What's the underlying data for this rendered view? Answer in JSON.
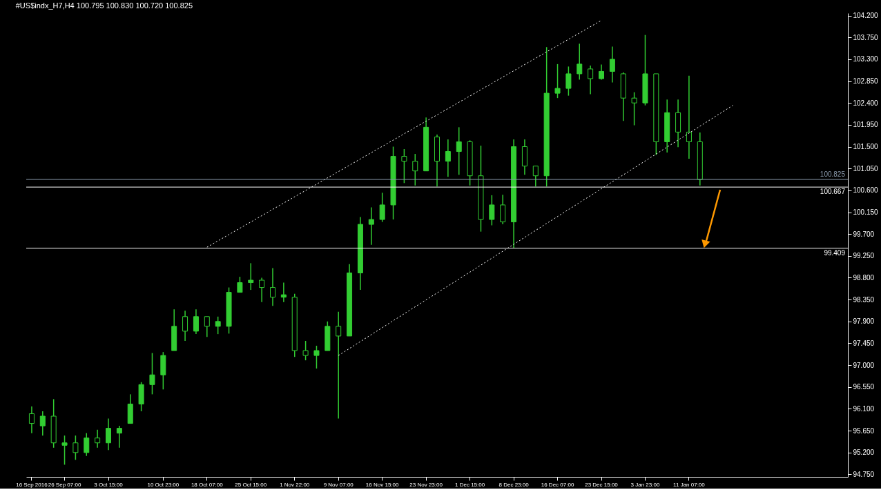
{
  "chart_data": {
    "type": "candlestick",
    "title": "#US$indx_H7,H4  100.795 100.830 100.720 100.825",
    "color": "#32cd32",
    "categories": [
      "16 Sep 2016",
      null,
      null,
      "26 Sep 07:00",
      null,
      null,
      null,
      "3 Oct 15:00",
      null,
      null,
      null,
      null,
      "10 Oct 23:00",
      null,
      null,
      null,
      "18 Oct 07:00",
      null,
      null,
      null,
      "25 Oct 15:00",
      null,
      null,
      null,
      "1 Nov 22:00",
      null,
      null,
      null,
      "9 Nov 07:00",
      null,
      null,
      null,
      "16 Nov 15:00",
      null,
      null,
      null,
      "23 Nov 23:00",
      null,
      null,
      null,
      "1 Dec 15:00",
      null,
      null,
      null,
      "8 Dec 23:00",
      null,
      null,
      null,
      "16 Dec 07:00",
      null,
      null,
      null,
      "23 Dec 15:00",
      null,
      null,
      null,
      "3 Jan 23:00",
      null,
      null,
      null,
      "11 Jan 07:00",
      null,
      null,
      null,
      null,
      null,
      null,
      null,
      null,
      null,
      null,
      null,
      null,
      null,
      null
    ],
    "ohlc": [
      [
        96.0,
        96.15,
        95.6,
        95.8
      ],
      [
        95.75,
        96.05,
        95.55,
        95.95
      ],
      [
        95.95,
        96.3,
        95.3,
        95.4
      ],
      [
        95.35,
        95.55,
        94.95,
        95.4
      ],
      [
        95.4,
        95.55,
        95.05,
        95.2
      ],
      [
        95.2,
        95.6,
        95.13,
        95.5
      ],
      [
        95.5,
        95.67,
        95.3,
        95.4
      ],
      [
        95.4,
        95.9,
        95.25,
        95.7
      ],
      [
        95.6,
        95.75,
        95.3,
        95.7
      ],
      [
        95.8,
        96.4,
        95.8,
        96.2
      ],
      [
        96.2,
        96.65,
        96.05,
        96.6
      ],
      [
        96.6,
        97.25,
        96.4,
        96.8
      ],
      [
        96.8,
        97.27,
        96.5,
        97.2
      ],
      [
        97.3,
        98.15,
        97.3,
        97.8
      ],
      [
        98.0,
        98.12,
        97.5,
        97.7
      ],
      [
        97.7,
        98.15,
        97.64,
        98.0
      ],
      [
        98.0,
        98.0,
        97.58,
        97.8
      ],
      [
        97.8,
        98.0,
        97.64,
        97.9
      ],
      [
        97.8,
        98.6,
        97.65,
        98.5
      ],
      [
        98.5,
        98.82,
        98.5,
        98.7
      ],
      [
        98.7,
        99.1,
        98.55,
        98.75
      ],
      [
        98.75,
        98.8,
        98.3,
        98.6
      ],
      [
        98.6,
        99.0,
        98.22,
        98.4
      ],
      [
        98.4,
        98.7,
        98.3,
        98.45
      ],
      [
        98.4,
        98.47,
        97.17,
        97.3
      ],
      [
        97.3,
        97.5,
        97.1,
        97.2
      ],
      [
        97.2,
        97.4,
        96.93,
        97.3
      ],
      [
        97.3,
        97.9,
        97.3,
        97.8
      ],
      [
        97.8,
        98.1,
        95.9,
        97.6
      ],
      [
        97.6,
        99.08,
        97.6,
        98.9
      ],
      [
        98.9,
        100.05,
        98.55,
        99.9
      ],
      [
        99.9,
        100.25,
        99.48,
        100.0
      ],
      [
        100.0,
        100.55,
        99.95,
        100.3
      ],
      [
        100.3,
        101.5,
        100.0,
        101.3
      ],
      [
        101.3,
        101.45,
        100.75,
        101.2
      ],
      [
        101.2,
        101.35,
        100.7,
        101.0
      ],
      [
        101.0,
        102.1,
        101.0,
        101.9
      ],
      [
        101.7,
        101.75,
        100.68,
        101.2
      ],
      [
        101.2,
        101.65,
        100.88,
        101.4
      ],
      [
        101.4,
        101.9,
        100.92,
        101.6
      ],
      [
        101.6,
        101.63,
        100.7,
        100.9
      ],
      [
        100.9,
        101.52,
        99.75,
        100.0
      ],
      [
        100.0,
        100.5,
        99.88,
        100.3
      ],
      [
        100.3,
        100.51,
        99.9,
        99.95
      ],
      [
        99.95,
        101.65,
        99.41,
        101.5
      ],
      [
        101.5,
        101.65,
        100.92,
        101.1
      ],
      [
        101.1,
        101.11,
        100.68,
        100.9
      ],
      [
        100.9,
        103.55,
        100.68,
        102.6
      ],
      [
        102.6,
        103.2,
        102.5,
        102.7
      ],
      [
        102.7,
        103.15,
        102.55,
        103.0
      ],
      [
        103.0,
        103.62,
        102.88,
        103.2
      ],
      [
        103.1,
        103.17,
        102.58,
        102.9
      ],
      [
        102.9,
        103.19,
        102.88,
        103.05
      ],
      [
        103.05,
        103.56,
        102.82,
        103.3
      ],
      [
        103.0,
        103.03,
        102.03,
        102.5
      ],
      [
        102.5,
        102.62,
        101.94,
        102.4
      ],
      [
        102.4,
        103.8,
        102.35,
        103.0
      ],
      [
        103.0,
        103.0,
        101.33,
        101.6
      ],
      [
        101.6,
        102.47,
        101.38,
        102.2
      ],
      [
        102.2,
        102.47,
        101.49,
        101.8
      ],
      [
        101.8,
        102.96,
        101.25,
        101.6
      ],
      [
        101.6,
        101.79,
        100.7,
        100.825
      ],
      null,
      null,
      null,
      null,
      null,
      null,
      null,
      null,
      null,
      null,
      null,
      null,
      null
    ],
    "series": [
      {
        "type": "line",
        "color": "#ffffff",
        "line_style": "dotted",
        "values": [
          null,
          null,
          null,
          null,
          null,
          null,
          null,
          null,
          null,
          null,
          null,
          null,
          null,
          null,
          null,
          null,
          99.43,
          null,
          null,
          null,
          null,
          null,
          null,
          null,
          null,
          null,
          null,
          null,
          null,
          null,
          null,
          null,
          null,
          null,
          null,
          null,
          null,
          null,
          null,
          null,
          null,
          null,
          null,
          null,
          null,
          null,
          null,
          null,
          null,
          null,
          null,
          null,
          104.1,
          null,
          null,
          null,
          null,
          null,
          null,
          null,
          null,
          null,
          null,
          null,
          null,
          null,
          null,
          null,
          null,
          null,
          null,
          null,
          null,
          null,
          null
        ]
      },
      {
        "type": "line",
        "color": "#ffffff",
        "line_style": "dotted",
        "values": [
          null,
          null,
          null,
          null,
          null,
          null,
          null,
          null,
          null,
          null,
          null,
          null,
          null,
          null,
          null,
          null,
          null,
          null,
          null,
          null,
          null,
          null,
          null,
          null,
          null,
          null,
          null,
          null,
          97.2,
          null,
          null,
          null,
          null,
          null,
          null,
          null,
          null,
          null,
          null,
          null,
          null,
          null,
          null,
          null,
          null,
          null,
          null,
          null,
          null,
          null,
          null,
          null,
          null,
          null,
          null,
          null,
          null,
          null,
          null,
          null,
          null,
          null,
          null,
          null,
          102.35,
          null,
          null,
          null,
          null,
          null,
          null,
          null,
          null,
          null,
          null
        ]
      }
    ],
    "ref_lines": [
      {
        "axis": "y",
        "value": 100.825,
        "label": "100.825",
        "color": "#8a9aac"
      },
      {
        "axis": "y",
        "value": 100.667,
        "label": "100.667",
        "color": "#ffffff"
      },
      {
        "axis": "y",
        "value": 99.409,
        "label": "99.409",
        "color": "#ffffff"
      }
    ],
    "ylim": [
      94.7,
      104.25
    ],
    "yticks": [
      {
        "value": 94.75,
        "label": "94.750"
      },
      {
        "value": 95.2,
        "label": "95.200"
      },
      {
        "value": 95.65,
        "label": "95.650"
      },
      {
        "value": 96.1,
        "label": "96.100"
      },
      {
        "value": 96.55,
        "label": "96.550"
      },
      {
        "value": 97.0,
        "label": "97.000"
      },
      {
        "value": 97.45,
        "label": "97.450"
      },
      {
        "value": 97.9,
        "label": "97.900"
      },
      {
        "value": 98.35,
        "label": "98.350"
      },
      {
        "value": 98.8,
        "label": "98.800"
      },
      {
        "value": 99.25,
        "label": "99.250"
      },
      {
        "value": 99.7,
        "label": "99.700"
      },
      {
        "value": 100.15,
        "label": "100.150"
      },
      {
        "value": 100.6,
        "label": "100.600"
      },
      {
        "value": 101.05,
        "label": "101.050"
      },
      {
        "value": 101.5,
        "label": "101.500"
      },
      {
        "value": 101.95,
        "label": "101.950"
      },
      {
        "value": 102.4,
        "label": "102.400"
      },
      {
        "value": 102.85,
        "label": "102.850"
      },
      {
        "value": 103.3,
        "label": "103.300"
      },
      {
        "value": 103.75,
        "label": "103.750"
      },
      {
        "value": 104.2,
        "label": "104.200"
      }
    ],
    "grid": false
  }
}
